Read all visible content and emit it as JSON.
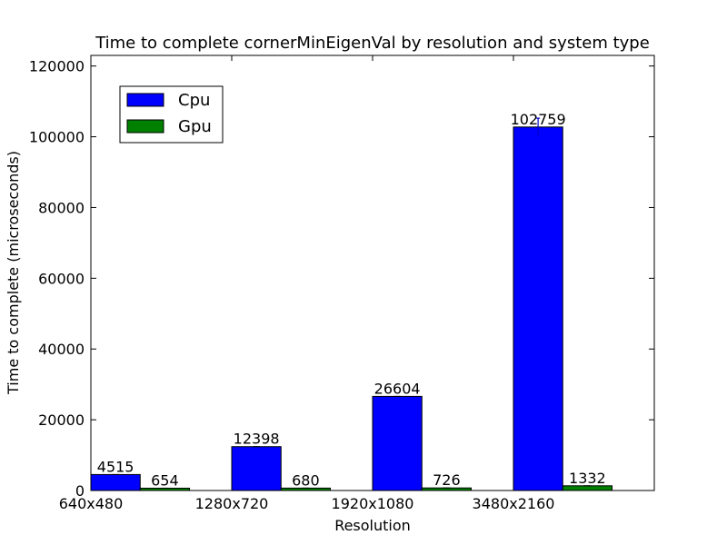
{
  "chart_data": {
    "type": "bar",
    "title": "Time to complete cornerMinEigenVal by resolution and system type",
    "xlabel": "Resolution",
    "ylabel": "Time to complete (microseconds)",
    "categories": [
      "640x480",
      "1280x720",
      "1920x1080",
      "3480x2160"
    ],
    "series": [
      {
        "name": "Cpu",
        "color": "#0000ff",
        "values": [
          4515,
          12398,
          26604,
          102759
        ],
        "errors": [
          0,
          0,
          0,
          2500
        ]
      },
      {
        "name": "Gpu",
        "color": "#008000",
        "values": [
          654,
          680,
          726,
          1332
        ],
        "errors": [
          0,
          0,
          0,
          0
        ]
      }
    ],
    "ylim": [
      0,
      123000
    ],
    "yticks": [
      0,
      20000,
      40000,
      60000,
      80000,
      100000,
      120000
    ],
    "grid": false,
    "legend_position": "top-left"
  }
}
